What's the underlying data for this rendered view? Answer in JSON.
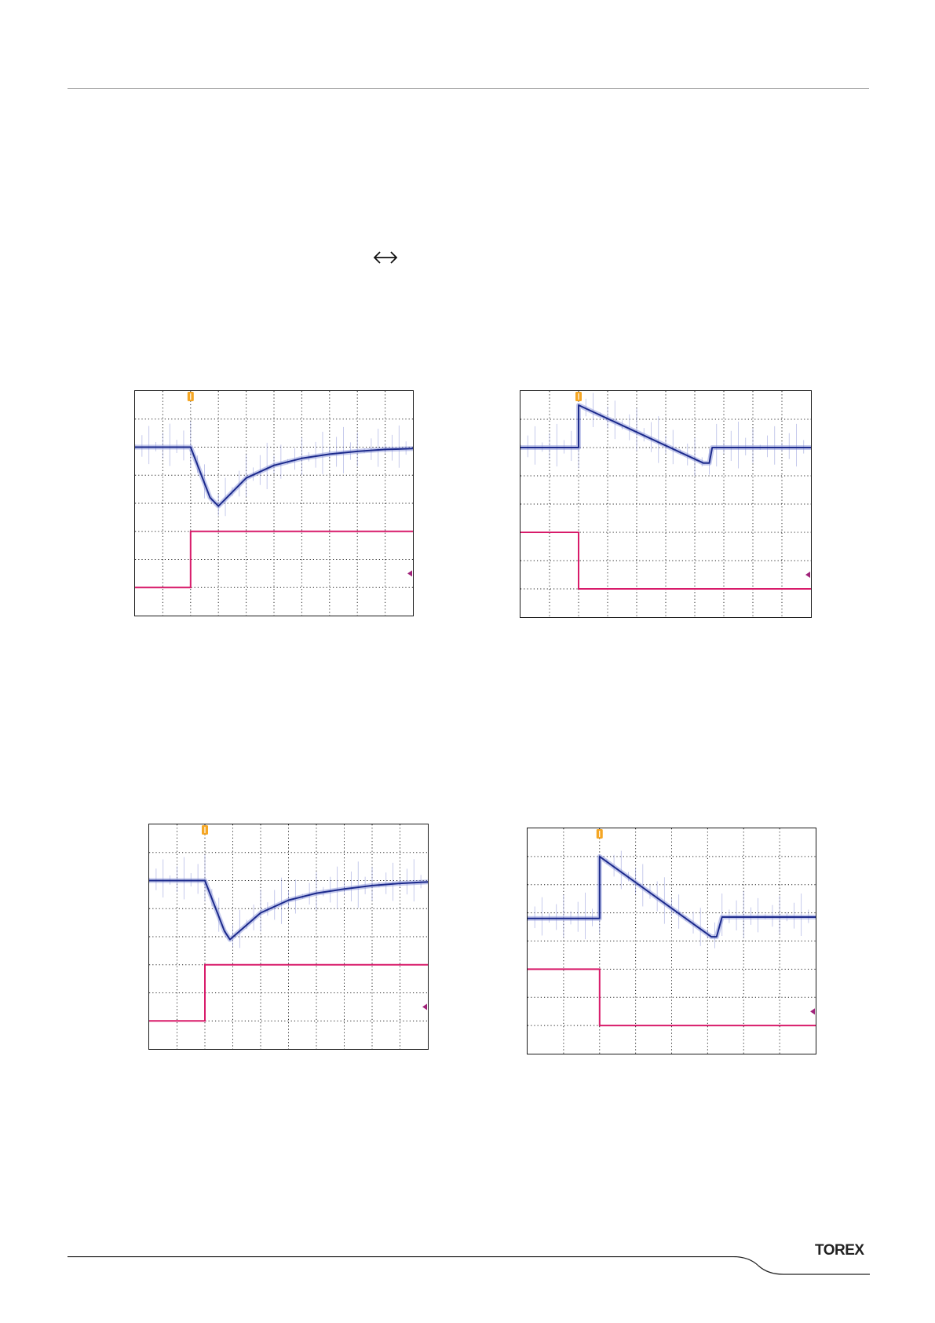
{
  "page": {
    "header_rule": true,
    "arrow_icon": "left-right-arrow-icon",
    "logo_icon": "torex-logo-icon",
    "logo_text": "TOREX"
  },
  "colors": {
    "output_trace": "#1c2a8c",
    "output_noise": "#7d87d4",
    "control_trace": "#d81b6a",
    "grid": "#222222",
    "trigger_marker": "#f5a623",
    "level_marker": "#a0237a"
  },
  "chart_data": [
    {
      "type": "line",
      "grid": {
        "x_divisions": 10,
        "y_divisions": 8,
        "on": true
      },
      "xlim": [
        0,
        10
      ],
      "ylim": [
        0,
        8
      ],
      "series": [
        {
          "role": "output",
          "x": [
            0,
            2,
            2.7,
            3,
            4,
            5,
            6,
            7,
            8,
            9,
            10
          ],
          "y": [
            6,
            6,
            4.2,
            3.9,
            4.9,
            5.35,
            5.6,
            5.75,
            5.85,
            5.92,
            5.95
          ]
        },
        {
          "role": "control",
          "x": [
            0,
            2,
            2,
            10
          ],
          "y": [
            1,
            1,
            3,
            3
          ]
        }
      ],
      "trigger_x": 2,
      "level_marker_y": 1.5
    },
    {
      "type": "line",
      "grid": {
        "x_divisions": 10,
        "y_divisions": 8,
        "on": true
      },
      "xlim": [
        0,
        10
      ],
      "ylim": [
        0,
        8
      ],
      "series": [
        {
          "role": "output",
          "x": [
            0,
            2,
            2,
            6.3,
            6.5,
            6.6,
            10
          ],
          "y": [
            6,
            6,
            7.5,
            5.45,
            5.45,
            6,
            6
          ]
        },
        {
          "role": "control",
          "x": [
            0,
            2,
            2,
            10
          ],
          "y": [
            3,
            3,
            1,
            1
          ]
        }
      ],
      "trigger_x": 2,
      "level_marker_y": 1.5
    },
    {
      "type": "line",
      "grid": {
        "x_divisions": 10,
        "y_divisions": 8,
        "on": true
      },
      "xlim": [
        0,
        10
      ],
      "ylim": [
        0,
        8
      ],
      "series": [
        {
          "role": "output",
          "x": [
            0,
            2,
            2.7,
            2.9,
            4,
            5,
            6,
            7,
            8,
            9,
            10
          ],
          "y": [
            6,
            6,
            4.2,
            3.9,
            4.85,
            5.3,
            5.55,
            5.7,
            5.82,
            5.9,
            5.95
          ]
        },
        {
          "role": "control",
          "x": [
            0,
            2,
            2,
            10
          ],
          "y": [
            1,
            1,
            3,
            3
          ]
        }
      ],
      "trigger_x": 2,
      "level_marker_y": 1.5
    },
    {
      "type": "line",
      "grid": {
        "x_divisions": 8,
        "y_divisions": 8,
        "on": true
      },
      "xlim": [
        0,
        8
      ],
      "ylim": [
        0,
        8
      ],
      "series": [
        {
          "role": "output",
          "x": [
            0,
            2,
            2,
            5.1,
            5.25,
            5.4,
            8
          ],
          "y": [
            4.8,
            4.8,
            7.0,
            4.15,
            4.15,
            4.85,
            4.85
          ]
        },
        {
          "role": "control",
          "x": [
            0,
            2,
            2,
            8
          ],
          "y": [
            3,
            3,
            1,
            1
          ]
        }
      ],
      "trigger_x": 2,
      "level_marker_y": 1.5
    }
  ]
}
